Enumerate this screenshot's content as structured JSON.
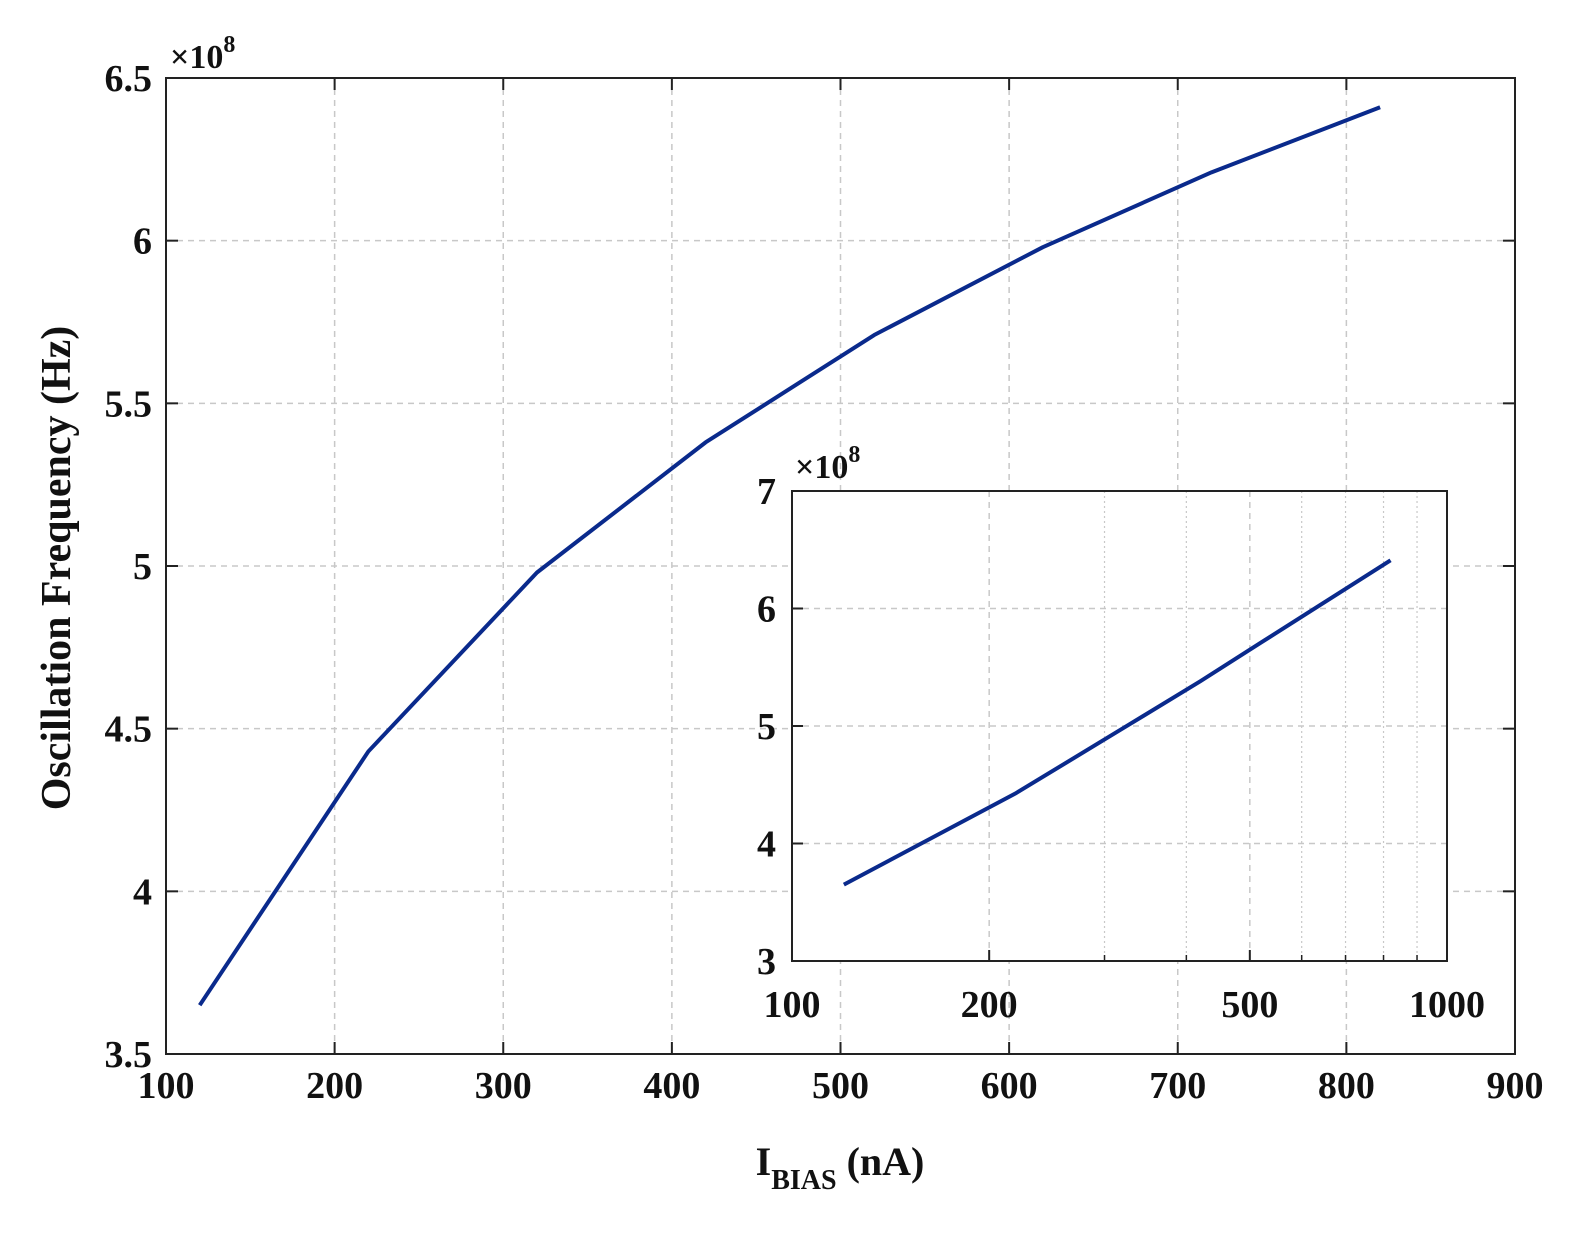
{
  "chart_data": [
    {
      "type": "line",
      "title": "",
      "xlabel": "I",
      "xlabel_subscript": "BIAS",
      "xlabel_unit": "(nA)",
      "ylabel": "Oscillation Frequency (Hz)",
      "y_multiplier_label": "×10",
      "y_multiplier_exponent": "8",
      "xlim": [
        100,
        900
      ],
      "ylim": [
        3.5,
        6.5
      ],
      "x_ticks": [
        100,
        200,
        300,
        400,
        500,
        600,
        700,
        800,
        900
      ],
      "x_tick_labels": [
        "100",
        "200",
        "300",
        "400",
        "500",
        "600",
        "700",
        "800",
        "900"
      ],
      "y_ticks": [
        3.5,
        4,
        4.5,
        5,
        5.5,
        6,
        6.5
      ],
      "y_tick_labels": [
        "3.5",
        "4",
        "4.5",
        "5",
        "5.5",
        "6",
        "6.5"
      ],
      "grid": true,
      "series": [
        {
          "color": "#0a2a8c",
          "x": [
            120,
            220,
            320,
            420,
            520,
            620,
            720,
            820
          ],
          "y": [
            3.65,
            4.43,
            4.98,
            5.38,
            5.71,
            5.98,
            6.21,
            6.41
          ]
        }
      ]
    },
    {
      "type": "line",
      "title": "",
      "x_scale": "log",
      "xlim": [
        100,
        1000
      ],
      "ylim": [
        3,
        7
      ],
      "y_multiplier_label": "×10",
      "y_multiplier_exponent": "8",
      "x_tick_labels_values": [
        100,
        200,
        500,
        1000
      ],
      "x_tick_labels": [
        "100",
        "200",
        "500",
        "1000"
      ],
      "x_minor_grid": [
        300,
        400,
        600,
        700,
        800,
        900
      ],
      "y_ticks": [
        3,
        4,
        5,
        6,
        7
      ],
      "y_tick_labels": [
        "3",
        "4",
        "5",
        "6",
        "7"
      ],
      "grid": true,
      "series": [
        {
          "color": "#0a2a8c",
          "x": [
            120,
            220,
            320,
            420,
            520,
            620,
            720,
            820
          ],
          "y": [
            3.65,
            4.43,
            4.98,
            5.38,
            5.71,
            5.98,
            6.21,
            6.41
          ]
        }
      ]
    }
  ]
}
